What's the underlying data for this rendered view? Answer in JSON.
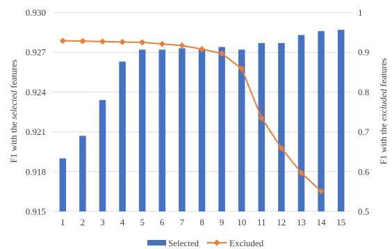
{
  "chart_data": {
    "type": "bar+line",
    "categories": [
      "1",
      "2",
      "3",
      "4",
      "5",
      "6",
      "7",
      "8",
      "9",
      "10",
      "11",
      "12",
      "13",
      "14",
      "15"
    ],
    "series": [
      {
        "name": "Selected",
        "type": "bar",
        "axis": "left",
        "color": "#4472C4",
        "values": [
          0.919,
          0.9207,
          0.9234,
          0.9263,
          0.9272,
          0.9272,
          0.9273,
          0.9272,
          0.9274,
          0.9272,
          0.9277,
          0.9277,
          0.9283,
          0.9286,
          0.9287
        ]
      },
      {
        "name": "Excluded",
        "type": "line",
        "axis": "right",
        "color": "#ED7D31",
        "marker": "diamond",
        "values": [
          0.929,
          0.928,
          0.927,
          0.926,
          0.925,
          0.921,
          0.917,
          0.908,
          0.897,
          0.859,
          0.735,
          0.659,
          0.597,
          0.551,
          null
        ]
      }
    ],
    "y_left": {
      "ylim": [
        0.915,
        0.93
      ],
      "ticks": [
        "0.915",
        "0.918",
        "0.921",
        "0.924",
        "0.927",
        "0.930"
      ],
      "tick_values": [
        0.915,
        0.918,
        0.921,
        0.924,
        0.927,
        0.93
      ],
      "label_parts": [
        {
          "text": "F1 with the ",
          "italic": false
        },
        {
          "text": "selected",
          "italic": true
        },
        {
          "text": " features",
          "italic": false
        }
      ]
    },
    "y_right": {
      "ylim": [
        0.5,
        1.0
      ],
      "ticks": [
        "0.5",
        "0.6",
        "0.7",
        "0.8",
        "0.9",
        "1"
      ],
      "tick_values": [
        0.5,
        0.6,
        0.7,
        0.8,
        0.9,
        1.0
      ],
      "label_parts": [
        {
          "text": "F1 with the ",
          "italic": false
        },
        {
          "text": "excluded",
          "italic": true
        },
        {
          "text": " features",
          "italic": false
        }
      ]
    },
    "grid": true,
    "legend_position": "bottom",
    "legend": [
      {
        "name": "Selected",
        "symbol": "bar",
        "color": "#4472C4"
      },
      {
        "name": "Excluded",
        "symbol": "line-diamond",
        "color": "#ED7D31"
      }
    ]
  }
}
